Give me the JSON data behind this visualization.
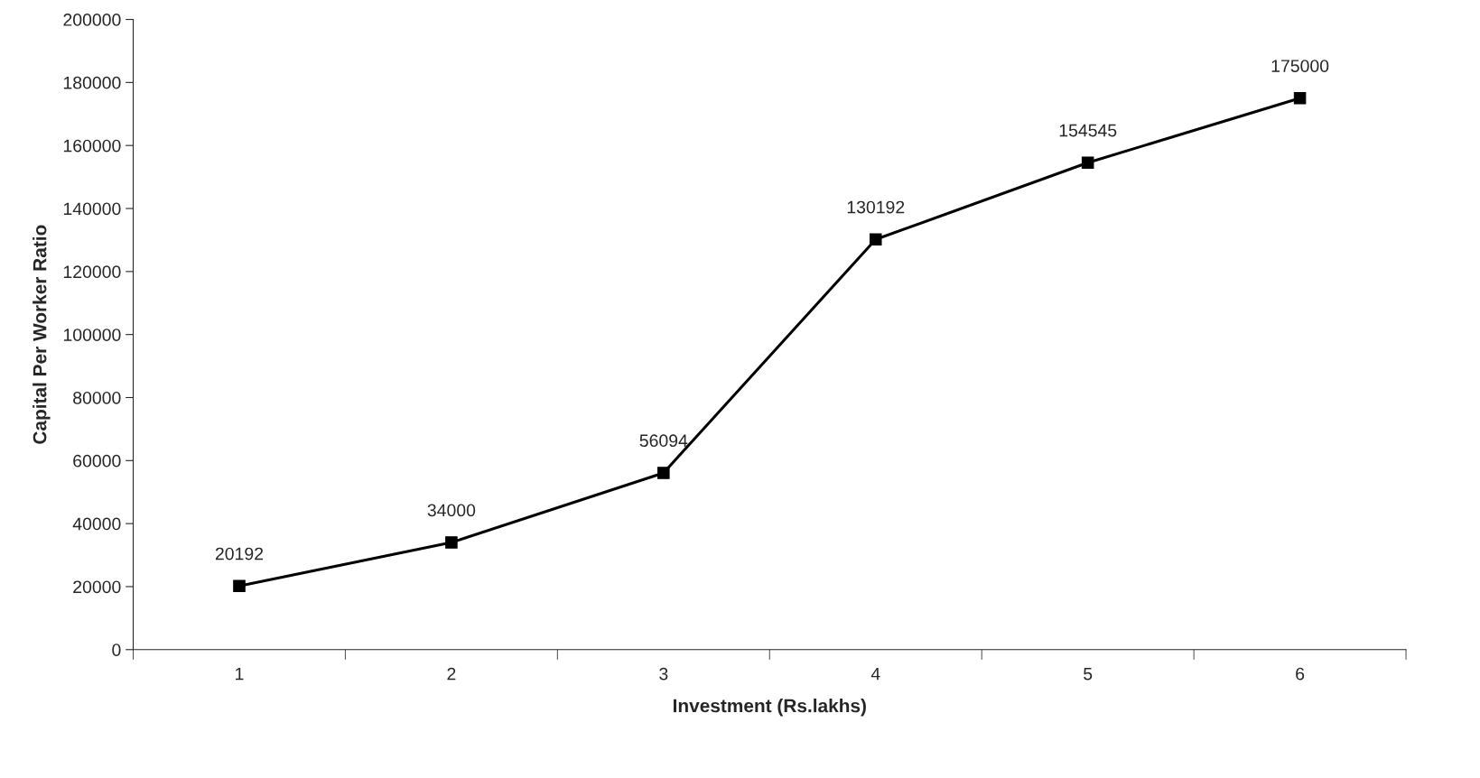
{
  "chart_data": {
    "type": "line",
    "xlabel": "Investment (Rs.lakhs)",
    "ylabel": "Capital Per Worker Ratio",
    "categories": [
      "1",
      "2",
      "3",
      "4",
      "5",
      "6"
    ],
    "series": [
      {
        "color": "#000000",
        "values": [
          20192,
          34000,
          56094,
          130192,
          154545,
          175000
        ]
      }
    ],
    "ylim": [
      0,
      200000
    ],
    "yticks": [
      0,
      20000,
      40000,
      60000,
      80000,
      100000,
      120000,
      140000,
      160000,
      180000,
      200000
    ],
    "grid": false,
    "legend": false,
    "marker": "square",
    "line_style": "solid",
    "data_labels": true
  }
}
